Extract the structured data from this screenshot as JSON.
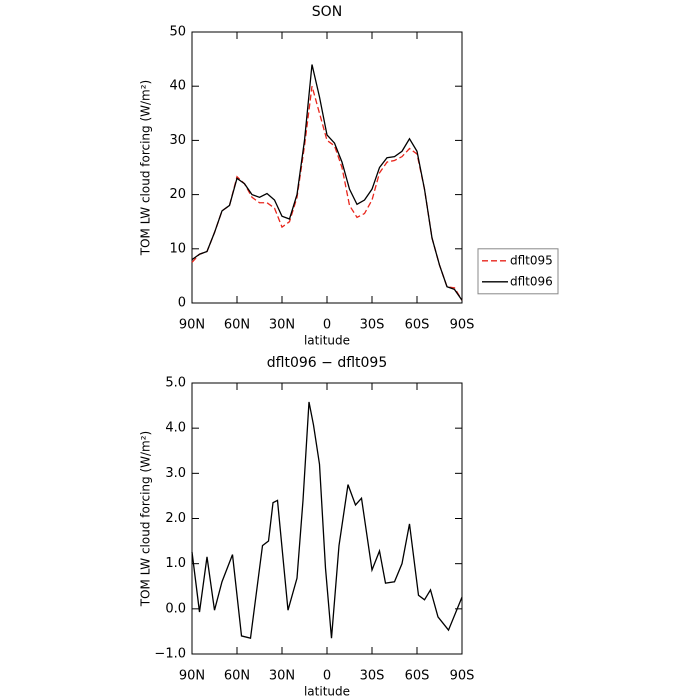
{
  "chart_data": [
    {
      "type": "line",
      "title": "SON",
      "xlabel": "latitude",
      "ylabel": "TOM LW cloud forcing (W/m²)",
      "x": [
        90,
        85,
        80,
        75,
        70,
        65,
        60,
        55,
        50,
        45,
        40,
        35,
        30,
        25,
        20,
        15,
        10,
        5,
        0,
        -5,
        -10,
        -15,
        -20,
        -25,
        -30,
        -35,
        -40,
        -45,
        -50,
        -55,
        -60,
        -65,
        -70,
        -75,
        -80,
        -85,
        -90
      ],
      "series": [
        {
          "name": "dflt095",
          "color": "#e8261c",
          "dash": true,
          "values": [
            7.5,
            9,
            9.5,
            13,
            17,
            18,
            23.3,
            22,
            19.5,
            18.5,
            18.5,
            17.5,
            14,
            15,
            19.5,
            29,
            40,
            35,
            30,
            29,
            25,
            18,
            15.8,
            16.5,
            19,
            24,
            26,
            26.3,
            27,
            28.5,
            27.5,
            21,
            12,
            7,
            3,
            2.8,
            0.5
          ]
        },
        {
          "name": "dflt096",
          "color": "#000000",
          "dash": false,
          "values": [
            8,
            9,
            9.5,
            13,
            17,
            18,
            23,
            22,
            20,
            19.5,
            20.2,
            19,
            16,
            15.5,
            20,
            30,
            44,
            38,
            31,
            29.5,
            26,
            21,
            18.2,
            19,
            21,
            25,
            26.8,
            27,
            28,
            30.3,
            28,
            21,
            12,
            7,
            3,
            2.5,
            0.5
          ]
        }
      ],
      "xlim": [
        90,
        -90
      ],
      "xticks": [
        {
          "value": 90,
          "label": "90N"
        },
        {
          "value": 60,
          "label": "60N"
        },
        {
          "value": 30,
          "label": "30N"
        },
        0,
        {
          "value": -30,
          "label": "30S"
        },
        {
          "value": -60,
          "label": "60S"
        },
        {
          "value": -90,
          "label": "90S"
        }
      ],
      "ylim": [
        0,
        50
      ],
      "yticks": [
        0,
        10,
        20,
        30,
        40,
        50
      ],
      "legend": "right"
    },
    {
      "type": "line",
      "title": "dflt096 − dflt095",
      "xlabel": "latitude",
      "ylabel": "TOM LW cloud forcing (W/m²)",
      "x": [
        90,
        85,
        80,
        75,
        70,
        63,
        57,
        51,
        43,
        39,
        36,
        33,
        26,
        20,
        16,
        12,
        9,
        5,
        1,
        -3,
        -8,
        -14,
        -19,
        -23,
        -30,
        -35,
        -39,
        -45,
        -50,
        -55,
        -61,
        -65,
        -69,
        -74,
        -81,
        -90
      ],
      "values": [
        1.26,
        -0.07,
        1.15,
        -0.03,
        0.6,
        1.2,
        -0.6,
        -0.65,
        1.4,
        1.5,
        2.35,
        2.4,
        -0.03,
        0.68,
        2.4,
        4.58,
        4.07,
        3.2,
        0.9,
        -0.65,
        1.4,
        2.75,
        2.3,
        2.45,
        0.86,
        1.28,
        0.57,
        0.6,
        1.0,
        1.88,
        0.3,
        0.2,
        0.42,
        -0.18,
        -0.47,
        0.26
      ],
      "color": "#000000",
      "xlim": [
        90,
        -90
      ],
      "xticks": [
        {
          "value": 90,
          "label": "90N"
        },
        {
          "value": 60,
          "label": "60N"
        },
        {
          "value": 30,
          "label": "30N"
        },
        0,
        {
          "value": -30,
          "label": "30S"
        },
        {
          "value": -60,
          "label": "60S"
        },
        {
          "value": -90,
          "label": "90S"
        }
      ],
      "ylim": [
        -1,
        5
      ],
      "yticks": [
        {
          "value": -1,
          "label": "−1.0"
        },
        {
          "value": 0,
          "label": "0.0"
        },
        {
          "value": 1,
          "label": "1.0"
        },
        {
          "value": 2,
          "label": "2.0"
        },
        {
          "value": 3,
          "label": "3.0"
        },
        {
          "value": 4,
          "label": "4.0"
        },
        {
          "value": 5,
          "label": "5.0"
        }
      ]
    }
  ]
}
